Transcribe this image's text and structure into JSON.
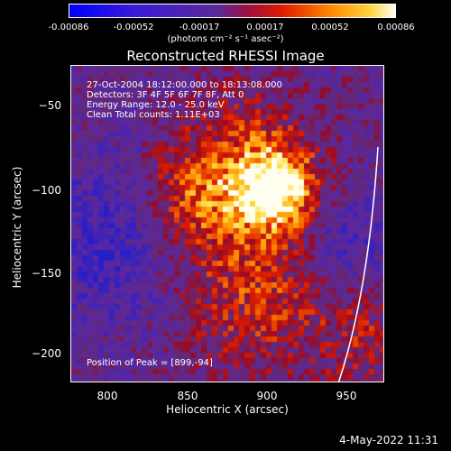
{
  "colorbar": {
    "ticks": [
      "-0.00086",
      "-0.00052",
      "-0.00017",
      "0.00017",
      "0.00052",
      "0.00086"
    ],
    "unit": "(photons cm⁻² s⁻¹ asec⁻²)"
  },
  "title": "Reconstructed RHESSI Image",
  "info": {
    "time": "27-Oct-2004 18:12:00.000 to 18:13:08.000",
    "detectors": "Detectors: 3F 4F 5F 6F 7F 8F, Att 0",
    "energy": "Energy Range: 12.0 - 25.0 keV",
    "clean": "Clean    Total counts: 1.11E+03"
  },
  "peak": "Position of Peak = [899,-94]",
  "axes": {
    "xlabel": "Heliocentric X (arcsec)",
    "ylabel": "Heliocentric Y (arcsec)",
    "xticks": [
      "800",
      "850",
      "900",
      "950"
    ],
    "yticks": [
      "−50",
      "−100",
      "−150",
      "−200"
    ]
  },
  "footer": "4-May-2022 11:31"
}
